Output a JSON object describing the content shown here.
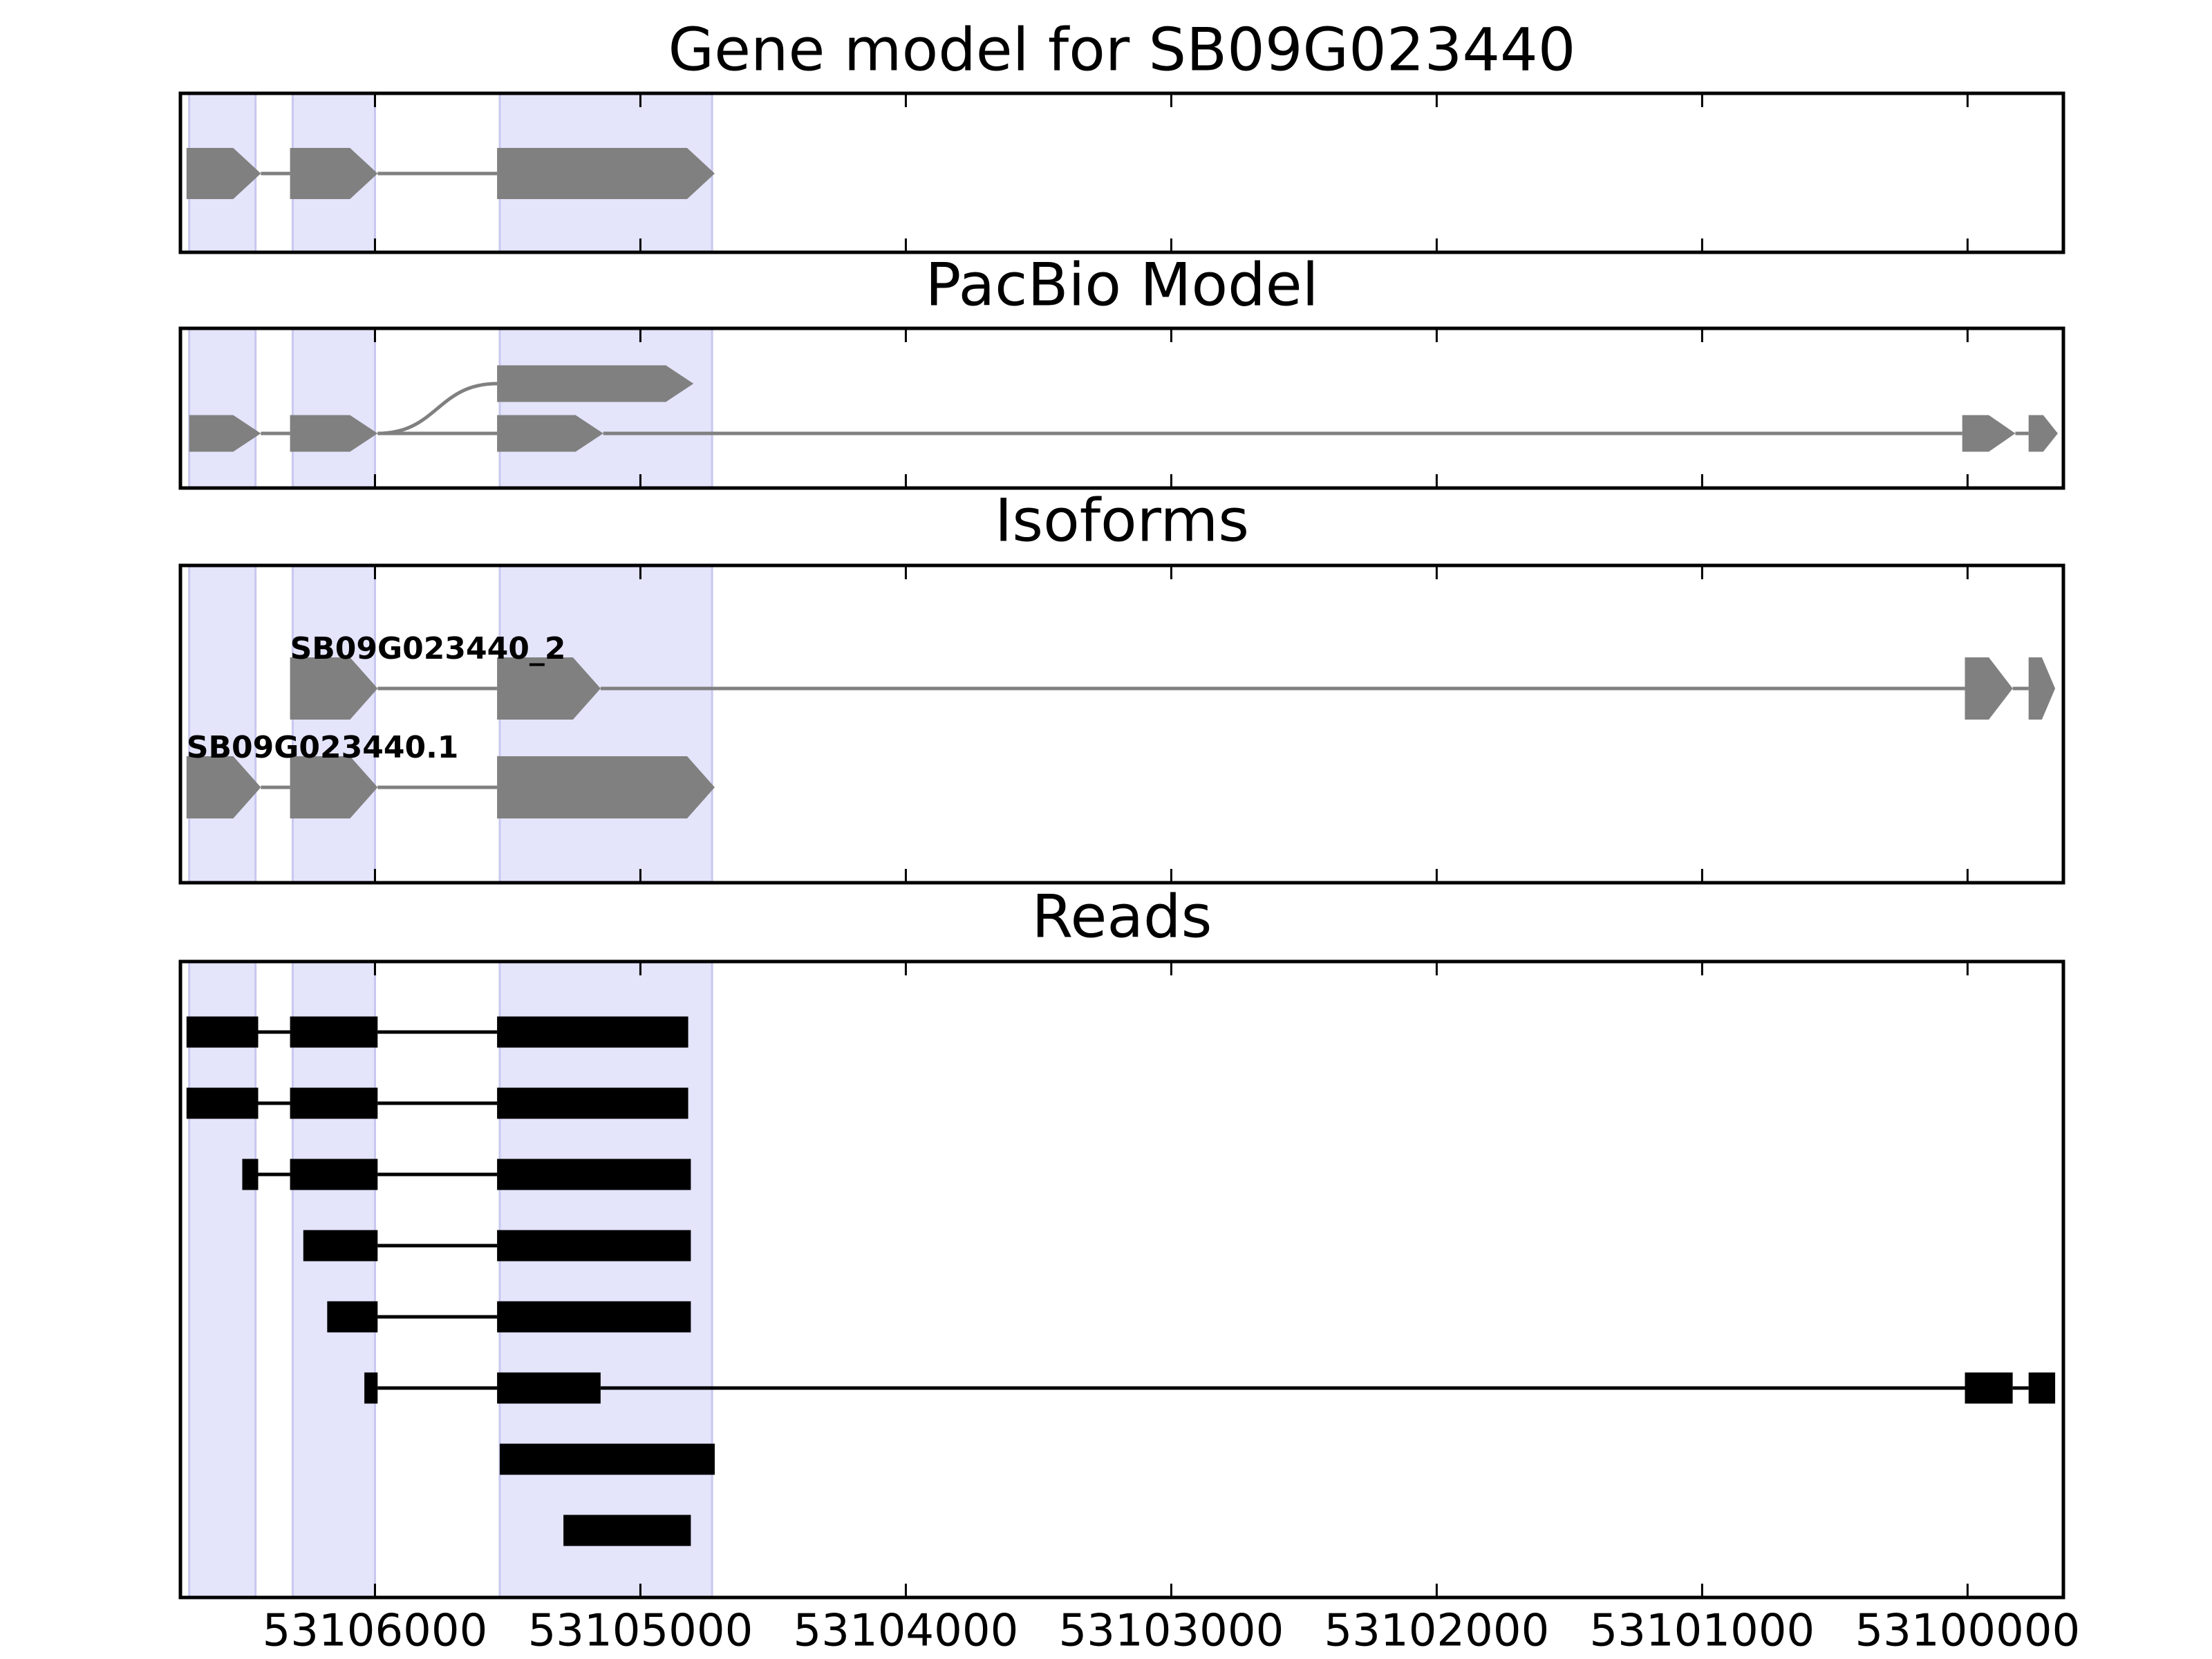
{
  "chart_data": [
    {
      "type": "gene-model",
      "title": "Gene model for SB09G023440",
      "color": "#808080",
      "shade_color": "#e4e4fb",
      "xlim": [
        53106733,
        53099639
      ],
      "xticks": [
        53106000,
        53105000,
        53104000,
        53103000,
        53102000,
        53101000,
        53100000
      ],
      "regions": [
        [
          53106700,
          53106450
        ],
        [
          53106310,
          53106000
        ],
        [
          53105530,
          53104730
        ]
      ],
      "transcripts": [
        {
          "exons": [
            [
              53106710,
              53106430
            ],
            [
              53106320,
              53105990
            ],
            [
              53105540,
              53104720
            ]
          ]
        }
      ]
    },
    {
      "type": "gene-model",
      "title": "PacBio Model",
      "color": "#808080",
      "shade_color": "#e4e4fb",
      "xlim": [
        53106733,
        53099639
      ],
      "xticks": [
        53106000,
        53105000,
        53104000,
        53103000,
        53102000,
        53101000,
        53100000
      ],
      "regions": [
        [
          53106700,
          53106450
        ],
        [
          53106310,
          53106000
        ],
        [
          53105530,
          53104730
        ]
      ],
      "transcripts": [
        {
          "exons": [
            [
              53106700,
              53106430
            ],
            [
              53106320,
              53105990
            ],
            [
              53105540,
              53105140
            ],
            [
              53100020,
              53099820
            ],
            [
              53099770,
              53099660
            ]
          ]
        },
        {
          "exons": [
            [
              53105540,
              53104800
            ]
          ]
        }
      ]
    },
    {
      "type": "gene-model",
      "title": "Isoforms",
      "color": "#808080",
      "shade_color": "#e4e4fb",
      "xlim": [
        53106733,
        53099639
      ],
      "xticks": [
        53106000,
        53105000,
        53104000,
        53103000,
        53102000,
        53101000,
        53100000
      ],
      "regions": [
        [
          53106700,
          53106450
        ],
        [
          53106310,
          53106000
        ],
        [
          53105530,
          53104730
        ]
      ],
      "transcripts": [
        {
          "name": "SB09G023440_2",
          "exons": [
            [
              53106320,
              53105990
            ],
            [
              53105540,
              53105150
            ],
            [
              53100010,
              53099830
            ],
            [
              53099770,
              53099670
            ]
          ]
        },
        {
          "name": "SB09G023440.1",
          "exons": [
            [
              53106710,
              53106430
            ],
            [
              53106320,
              53105990
            ],
            [
              53105540,
              53104720
            ]
          ]
        }
      ]
    },
    {
      "type": "reads",
      "title": "Reads",
      "color": "#000000",
      "shade_color": "#e4e4fb",
      "xlim": [
        53106733,
        53099639
      ],
      "xticks": [
        53106000,
        53105000,
        53104000,
        53103000,
        53102000,
        53101000,
        53100000
      ],
      "regions": [
        [
          53106700,
          53106450
        ],
        [
          53106310,
          53106000
        ],
        [
          53105530,
          53104730
        ]
      ],
      "transcripts": [
        {
          "exons": [
            [
              53106710,
              53106440
            ],
            [
              53106320,
              53105990
            ],
            [
              53105540,
              53104820
            ]
          ]
        },
        {
          "exons": [
            [
              53106710,
              53106440
            ],
            [
              53106320,
              53105990
            ],
            [
              53105540,
              53104820
            ]
          ]
        },
        {
          "exons": [
            [
              53106500,
              53106440
            ],
            [
              53106320,
              53105990
            ],
            [
              53105540,
              53104810
            ]
          ]
        },
        {
          "exons": [
            [
              53106270,
              53105990
            ],
            [
              53105540,
              53104810
            ]
          ]
        },
        {
          "exons": [
            [
              53106180,
              53105990
            ],
            [
              53105540,
              53104810
            ]
          ]
        },
        {
          "exons": [
            [
              53106040,
              53105990
            ],
            [
              53105540,
              53105150
            ],
            [
              53100010,
              53099830
            ],
            [
              53099770,
              53099670
            ]
          ]
        },
        {
          "exons": [
            [
              53105530,
              53104720
            ]
          ]
        },
        {
          "exons": [
            [
              53105290,
              53104810
            ]
          ]
        }
      ]
    }
  ]
}
